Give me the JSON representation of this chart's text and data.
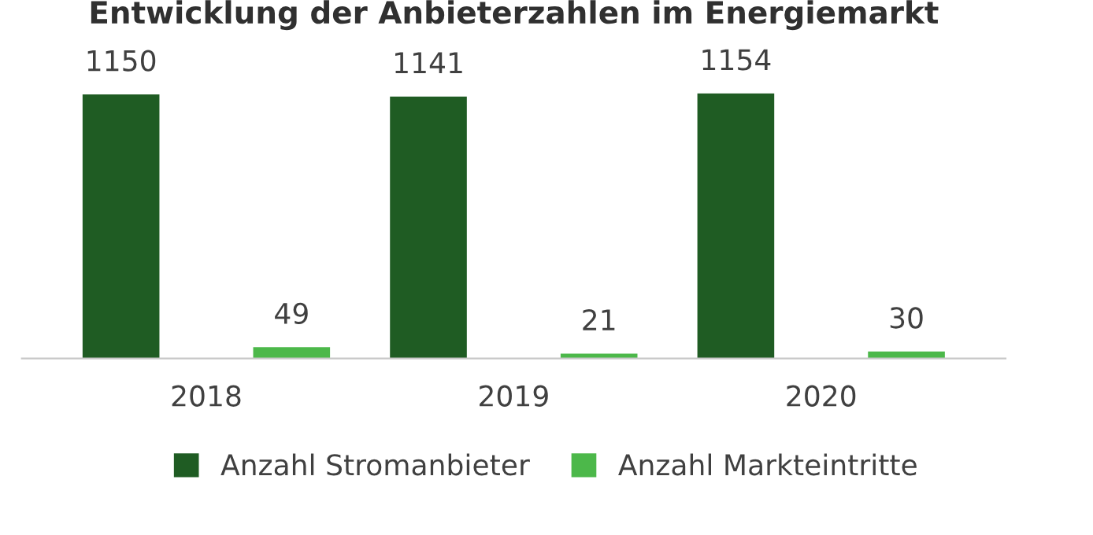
{
  "chart_data": {
    "type": "bar",
    "title": "Entwicklung der Anbieterzahlen im Energiemarkt",
    "categories": [
      "2018",
      "2019",
      "2020"
    ],
    "series": [
      {
        "name": "Anzahl Stromanbieter",
        "color": "#1f5c23",
        "values": [
          1150,
          1141,
          1154
        ]
      },
      {
        "name": "Anzahl Markteintritte",
        "color": "#4cb84a",
        "values": [
          49,
          21,
          30
        ]
      }
    ],
    "data_labels": true,
    "legend": "bottom",
    "grid": false
  }
}
